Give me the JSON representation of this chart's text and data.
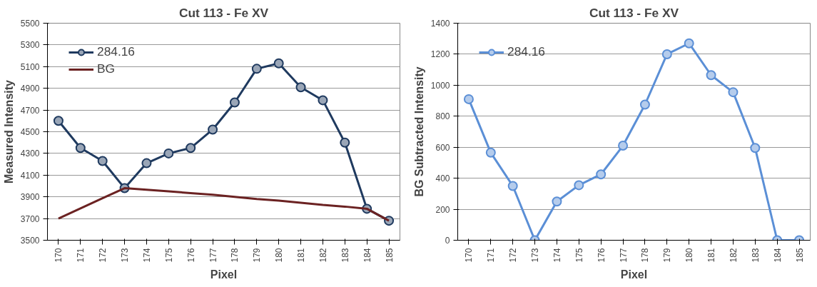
{
  "chart_data": [
    {
      "type": "line",
      "title": "Cut 113 - Fe XV",
      "xlabel": "Pixel",
      "ylabel": "Measured Intensity",
      "categories": [
        "170",
        "171",
        "172",
        "173",
        "174",
        "175",
        "176",
        "177",
        "178",
        "179",
        "180",
        "181",
        "182",
        "183",
        "184",
        "185"
      ],
      "series": [
        {
          "name": "284.16",
          "color": "#1f3a5f",
          "marker": "circle",
          "values": [
            4600,
            4350,
            4230,
            3980,
            4210,
            4300,
            4350,
            4520,
            4770,
            5080,
            5130,
            4910,
            4790,
            4400,
            3790,
            3680
          ]
        },
        {
          "name": "BG",
          "color": "#6b2222",
          "marker": "none",
          "values": [
            3700,
            3793,
            3887,
            3980,
            3965,
            3950,
            3935,
            3920,
            3900,
            3880,
            3865,
            3845,
            3825,
            3810,
            3790,
            3680
          ]
        }
      ],
      "ylim": [
        3500,
        5500
      ],
      "yticks": [
        3500,
        3700,
        3900,
        4100,
        4300,
        4500,
        4700,
        4900,
        5100,
        5300,
        5500
      ],
      "grid": "y",
      "legend": "top left",
      "line_style": "solid"
    },
    {
      "type": "line",
      "title": "Cut 113 - Fe XV",
      "xlabel": "Pixel",
      "ylabel": "BG Subtracted Intensity",
      "categories": [
        "170",
        "171",
        "172",
        "173",
        "174",
        "175",
        "176",
        "177",
        "178",
        "179",
        "180",
        "181",
        "182",
        "183",
        "184",
        "185"
      ],
      "series": [
        {
          "name": "284.16",
          "color": "#5b8fd6",
          "marker": "circle",
          "values": [
            910,
            565,
            350,
            0,
            250,
            355,
            425,
            610,
            875,
            1200,
            1270,
            1065,
            955,
            595,
            0,
            0
          ]
        }
      ],
      "ylim": [
        0,
        1400
      ],
      "yticks": [
        0,
        200,
        400,
        600,
        800,
        1000,
        1200,
        1400
      ],
      "grid": "y",
      "legend": "top left",
      "line_style": "solid"
    }
  ]
}
